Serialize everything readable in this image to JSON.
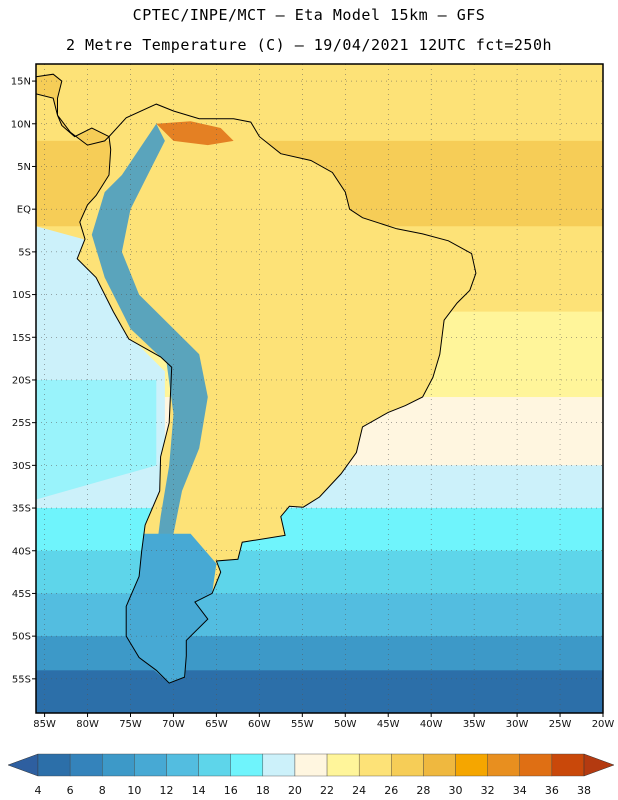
{
  "title": {
    "line1": "CPTEC/INPE/MCT –  Eta Model 15km – GFS",
    "line2": "2 Metre Temperature (C) – 19/04/2021 12UTC fct=250h"
  },
  "map": {
    "region": "South America",
    "lon_range": [
      -86,
      -20
    ],
    "lat_range": [
      -59,
      17
    ],
    "lat_ticks": [
      {
        "value": 15,
        "label": "15N"
      },
      {
        "value": 10,
        "label": "10N"
      },
      {
        "value": 5,
        "label": "5N"
      },
      {
        "value": 0,
        "label": "EQ"
      },
      {
        "value": -5,
        "label": "5S"
      },
      {
        "value": -10,
        "label": "10S"
      },
      {
        "value": -15,
        "label": "15S"
      },
      {
        "value": -20,
        "label": "20S"
      },
      {
        "value": -25,
        "label": "25S"
      },
      {
        "value": -30,
        "label": "30S"
      },
      {
        "value": -35,
        "label": "35S"
      },
      {
        "value": -40,
        "label": "40S"
      },
      {
        "value": -45,
        "label": "45S"
      },
      {
        "value": -50,
        "label": "50S"
      },
      {
        "value": -55,
        "label": "55S"
      }
    ],
    "lon_ticks": [
      {
        "value": -85,
        "label": "85W"
      },
      {
        "value": -80,
        "label": "80W"
      },
      {
        "value": -75,
        "label": "75W"
      },
      {
        "value": -70,
        "label": "70W"
      },
      {
        "value": -65,
        "label": "65W"
      },
      {
        "value": -60,
        "label": "60W"
      },
      {
        "value": -55,
        "label": "55W"
      },
      {
        "value": -50,
        "label": "50W"
      },
      {
        "value": -45,
        "label": "45W"
      },
      {
        "value": -40,
        "label": "40W"
      },
      {
        "value": -35,
        "label": "35W"
      },
      {
        "value": -30,
        "label": "30W"
      },
      {
        "value": -25,
        "label": "25W"
      },
      {
        "value": -20,
        "label": "20W"
      }
    ],
    "continent_outline": [
      [
        -77.5,
        8.5
      ],
      [
        -75.5,
        10.7
      ],
      [
        -72,
        12.3
      ],
      [
        -70,
        11.5
      ],
      [
        -67,
        10.6
      ],
      [
        -63,
        10.6
      ],
      [
        -61,
        10.2
      ],
      [
        -60,
        8.5
      ],
      [
        -57.5,
        6.5
      ],
      [
        -54,
        5.7
      ],
      [
        -51.5,
        4.3
      ],
      [
        -50,
        2
      ],
      [
        -49.5,
        0
      ],
      [
        -48,
        -1
      ],
      [
        -44,
        -2.3
      ],
      [
        -41,
        -2.9
      ],
      [
        -38,
        -3.7
      ],
      [
        -35.3,
        -5.2
      ],
      [
        -34.8,
        -7.5
      ],
      [
        -35.5,
        -9.5
      ],
      [
        -37,
        -11
      ],
      [
        -38.5,
        -13
      ],
      [
        -39,
        -17
      ],
      [
        -39.8,
        -19.7
      ],
      [
        -41,
        -22
      ],
      [
        -43,
        -23
      ],
      [
        -45,
        -23.8
      ],
      [
        -48,
        -25.5
      ],
      [
        -48.7,
        -28.5
      ],
      [
        -50.5,
        -31
      ],
      [
        -53,
        -33.7
      ],
      [
        -54.9,
        -34.9
      ],
      [
        -56.5,
        -34.8
      ],
      [
        -57.5,
        -36
      ],
      [
        -57,
        -38.2
      ],
      [
        -62,
        -39
      ],
      [
        -62.5,
        -41
      ],
      [
        -65,
        -41.2
      ],
      [
        -64.5,
        -42.5
      ],
      [
        -65.5,
        -45
      ],
      [
        -67.5,
        -46
      ],
      [
        -66,
        -48
      ],
      [
        -68.5,
        -50.5
      ],
      [
        -68.5,
        -52.3
      ],
      [
        -68.7,
        -54.8
      ],
      [
        -70.5,
        -55.5
      ],
      [
        -72,
        -54
      ],
      [
        -74,
        -52.5
      ],
      [
        -75.5,
        -50
      ],
      [
        -75.5,
        -46.5
      ],
      [
        -74,
        -43
      ],
      [
        -73.7,
        -40
      ],
      [
        -73.3,
        -37
      ],
      [
        -71.6,
        -33
      ],
      [
        -71.5,
        -29
      ],
      [
        -70.5,
        -25
      ],
      [
        -70.2,
        -18.5
      ],
      [
        -71.5,
        -17.3
      ],
      [
        -75.2,
        -15.2
      ],
      [
        -77,
        -12
      ],
      [
        -79,
        -8
      ],
      [
        -81.2,
        -5.8
      ],
      [
        -80.3,
        -3.5
      ],
      [
        -80.9,
        -1.5
      ],
      [
        -80,
        0.5
      ],
      [
        -79,
        1.6
      ],
      [
        -77.5,
        4
      ],
      [
        -77.3,
        7
      ]
    ],
    "central_america_outline": [
      [
        -77.5,
        8.5
      ],
      [
        -79.5,
        9.5
      ],
      [
        -81.5,
        8.5
      ],
      [
        -83,
        9.8
      ],
      [
        -83.5,
        11
      ],
      [
        -84,
        13
      ],
      [
        -86,
        13.5
      ],
      [
        -86,
        15.5
      ],
      [
        -84,
        15.8
      ],
      [
        -83,
        15
      ],
      [
        -83.5,
        13
      ],
      [
        -83.5,
        11
      ],
      [
        -82,
        9
      ],
      [
        -80,
        7.5
      ],
      [
        -78,
        8
      ]
    ]
  },
  "colorbar": {
    "labels": [
      "4",
      "6",
      "8",
      "10",
      "12",
      "14",
      "16",
      "18",
      "20",
      "22",
      "24",
      "26",
      "28",
      "30",
      "32",
      "34",
      "36",
      "38"
    ],
    "colors": [
      "#2c6fa9",
      "#3483bb",
      "#3d99c8",
      "#47a9d4",
      "#53bde0",
      "#5ed5ea",
      "#6ff4fc",
      "#ccf1fa",
      "#fff6e0",
      "#fff59a",
      "#fde277",
      "#f6cd57",
      "#efb83f",
      "#f5a600",
      "#e88f1f",
      "#df6f14",
      "#c9480a"
    ],
    "low_arrow_color": "#2e5fa0",
    "high_arrow_color": "#b43a10"
  }
}
